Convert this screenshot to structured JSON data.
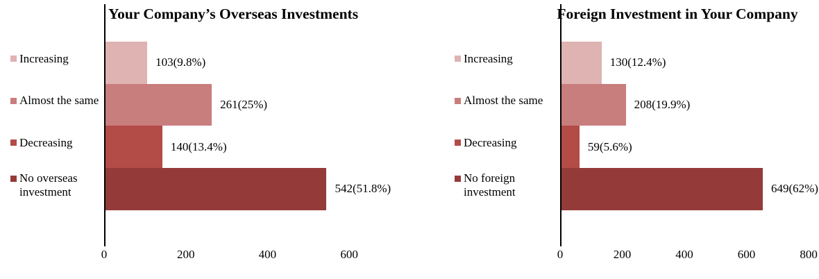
{
  "figure": {
    "background_color": "#ffffff",
    "text_color": "#000000"
  },
  "chart_data": [
    {
      "type": "bar",
      "orientation": "horizontal",
      "title": "Your Company’s Overseas Investments",
      "categories": [
        "Increasing",
        "Almost the same",
        "Decreasing",
        "No overseas investment"
      ],
      "values": [
        103,
        261,
        140,
        542
      ],
      "percentages": [
        9.8,
        25,
        13.4,
        51.8
      ],
      "data_labels": [
        "103(9.8%)",
        "261(25%)",
        "140(13.4%)",
        "542(51.8%)"
      ],
      "bar_colors": [
        "#deb3b2",
        "#c87e7d",
        "#b34b47",
        "#943b39"
      ],
      "xticks": [
        "0",
        "200",
        "400",
        "600"
      ],
      "xtick_values": [
        0,
        200,
        400,
        600
      ],
      "xlim": [
        0,
        600
      ],
      "grid": false,
      "legend": "none"
    },
    {
      "type": "bar",
      "orientation": "horizontal",
      "title": "Foreign Investment in Your Company",
      "categories": [
        "Increasing",
        "Almost the same",
        "Decreasing",
        "No foreign investment"
      ],
      "values": [
        130,
        208,
        59,
        649
      ],
      "percentages": [
        12.4,
        19.9,
        5.6,
        62
      ],
      "data_labels": [
        "130(12.4%)",
        "208(19.9%)",
        "59(5.6%)",
        "649(62%)"
      ],
      "bar_colors": [
        "#deb3b2",
        "#c87e7d",
        "#b34b47",
        "#943b39"
      ],
      "xticks": [
        "0",
        "200",
        "400",
        "600",
        "800"
      ],
      "xtick_values": [
        0,
        200,
        400,
        600,
        800
      ],
      "xlim": [
        0,
        800
      ],
      "grid": false,
      "legend": "none"
    }
  ]
}
